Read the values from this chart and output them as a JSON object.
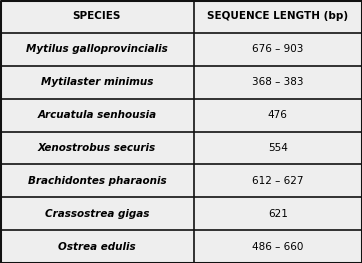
{
  "col_headers": [
    "SPECIES",
    "SEQUENCE LENGTH (bp)"
  ],
  "rows": [
    [
      "Mytilus galloprovincialis",
      "676 – 903"
    ],
    [
      "Mytilaster minimus",
      "368 – 383"
    ],
    [
      "Arcuatula senhousia",
      "476"
    ],
    [
      "Xenostrobus securis",
      "554"
    ],
    [
      "Brachidontes pharaonis",
      "612 – 627"
    ],
    [
      "Crassostrea gigas",
      "621"
    ],
    [
      "Ostrea edulis",
      "486 – 660"
    ]
  ],
  "bg_color": "#eeeeee",
  "border_color": "#111111",
  "text_color": "#000000",
  "header_fontsize": 7.5,
  "cell_fontsize": 7.5,
  "col_split": 0.535,
  "figsize": [
    3.62,
    2.63
  ],
  "dpi": 100,
  "outer_lw": 2.2,
  "inner_lw": 1.2
}
